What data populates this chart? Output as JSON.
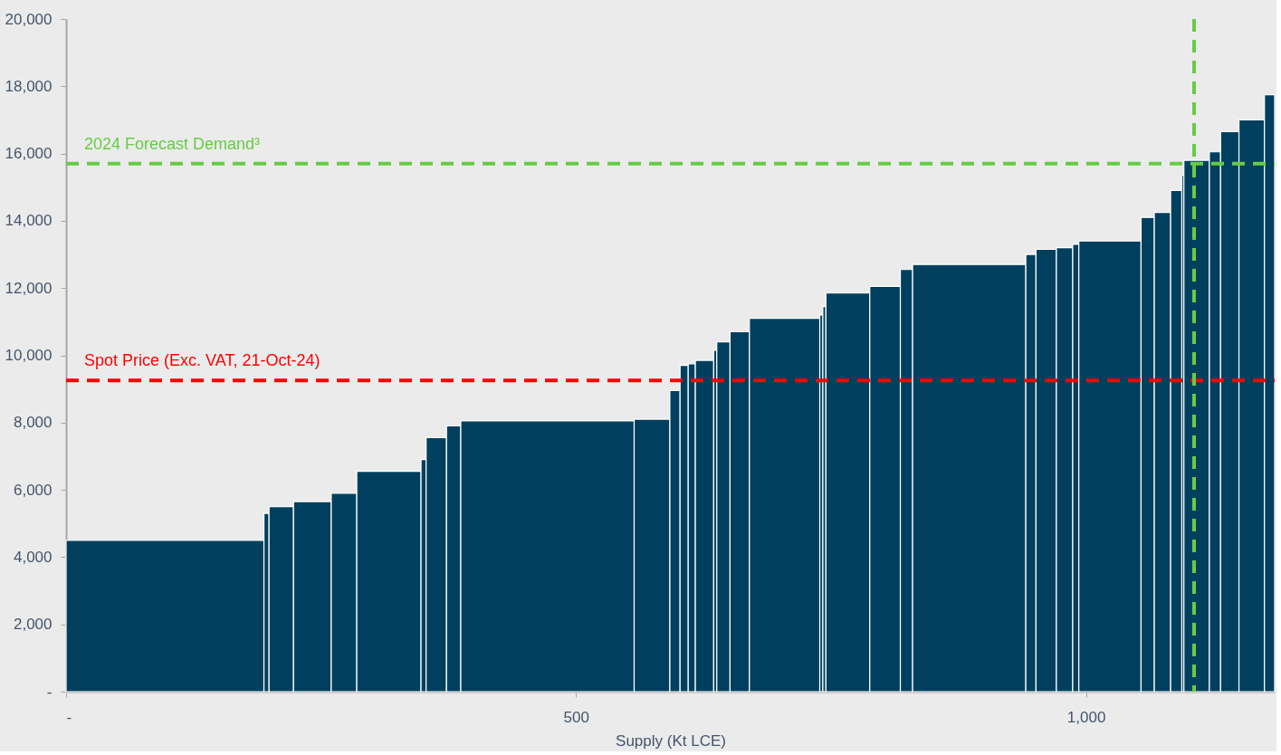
{
  "chart_data": {
    "type": "histogram",
    "xlabel": "Supply (Kt LCE)",
    "color": "#00405e",
    "bins": [
      0,
      194,
      199,
      223,
      260,
      285,
      348,
      353,
      373,
      387,
      557,
      592,
      602,
      610,
      617,
      635,
      638,
      651,
      670,
      739,
      742,
      745,
      788,
      818,
      830,
      941,
      951,
      971,
      987,
      993,
      1054,
      1067,
      1083,
      1094,
      1096,
      1121,
      1132,
      1150,
      1175,
      1185
    ],
    "values": [
      4500,
      5300,
      5500,
      5650,
      5900,
      6550,
      6900,
      7550,
      7900,
      8050,
      8100,
      8950,
      9700,
      9750,
      9850,
      10150,
      10400,
      10700,
      11100,
      11200,
      11450,
      11850,
      12050,
      12550,
      12700,
      13000,
      13150,
      13200,
      13300,
      13400,
      14100,
      14250,
      14900,
      15350,
      15800,
      16050,
      16650,
      17000,
      17750
    ],
    "xlim": [
      0,
      1185
    ],
    "xticks": [
      {
        "value": 0,
        "label": "-"
      },
      500,
      {
        "value": 1000,
        "label": "1,000"
      }
    ],
    "ylim": [
      0,
      20000
    ],
    "yticks": [
      {
        "value": 0,
        "label": "-"
      },
      {
        "value": 2000,
        "label": "2,000"
      },
      {
        "value": 4000,
        "label": "4,000"
      },
      {
        "value": 6000,
        "label": "6,000"
      },
      {
        "value": 8000,
        "label": "8,000"
      },
      {
        "value": 10000,
        "label": "10,000"
      },
      {
        "value": 12000,
        "label": "12,000"
      },
      {
        "value": 14000,
        "label": "14,000"
      },
      {
        "value": 16000,
        "label": "16,000"
      },
      {
        "value": 18000,
        "label": "18,000"
      },
      {
        "value": 20000,
        "label": "20,000"
      }
    ],
    "grid": false,
    "ref_lines": [
      {
        "axis": "y",
        "value": 9250,
        "label": "Spot Price (Exc. VAT, 21-Oct-24)",
        "color": "#ff0000",
        "line_style": "dashed"
      },
      {
        "axis": "y",
        "value": 15700,
        "label": "2024 Forecast Demand³",
        "color": "#66cc44",
        "line_style": "dashed"
      },
      {
        "axis": "x",
        "value": 1106,
        "color": "#66cc44",
        "line_style": "dashed"
      }
    ]
  }
}
